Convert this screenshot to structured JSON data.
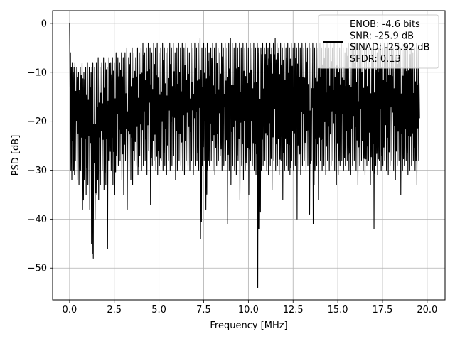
{
  "chart_data": {
    "type": "line",
    "title": "",
    "xlabel": "Frequency [MHz]",
    "ylabel": "PSD [dB]",
    "xlim": [
      -0.95,
      21.0
    ],
    "ylim": [
      -56.5,
      2.6
    ],
    "grid": true,
    "xticks": [
      0.0,
      2.5,
      5.0,
      7.5,
      10.0,
      12.5,
      15.0,
      17.5,
      20.0
    ],
    "xtick_labels": [
      "0.0",
      "2.5",
      "5.0",
      "7.5",
      "10.0",
      "12.5",
      "15.0",
      "17.5",
      "20.0"
    ],
    "yticks": [
      0,
      -10,
      -20,
      -30,
      -40,
      -50
    ],
    "ytick_labels": [
      "0",
      "−10",
      "−20",
      "−30",
      "−40",
      "−50"
    ],
    "legend": {
      "placement": "top-right",
      "entries": [
        "ENOB: -4.6 bits",
        "SNR: -25.9 dB",
        "SINAD: -25.92 dB",
        "SFDR: 0.13"
      ]
    },
    "series": [
      {
        "color": "#000000",
        "x": [
          0.0,
          0.05,
          0.1,
          0.15,
          0.2,
          0.25,
          0.3,
          0.4,
          0.5,
          0.6,
          0.7,
          0.8,
          0.9,
          1.0,
          1.1,
          1.2,
          1.25,
          1.3,
          1.4,
          1.5,
          1.6,
          1.7,
          1.8,
          1.9,
          2.0,
          2.1,
          2.2,
          2.3,
          2.4,
          2.5,
          2.6,
          2.7,
          2.8,
          2.9,
          3.0,
          3.1,
          3.2,
          3.3,
          3.4,
          3.5,
          3.6,
          3.7,
          3.8,
          3.9,
          4.0,
          4.1,
          4.2,
          4.3,
          4.4,
          4.5,
          4.6,
          4.7,
          4.8,
          4.9,
          5.0,
          5.1,
          5.2,
          5.3,
          5.4,
          5.5,
          5.6,
          5.7,
          5.8,
          5.9,
          6.0,
          6.1,
          6.2,
          6.3,
          6.4,
          6.5,
          6.6,
          6.7,
          6.8,
          6.9,
          7.0,
          7.1,
          7.2,
          7.3,
          7.4,
          7.5,
          7.6,
          7.7,
          7.8,
          7.9,
          8.0,
          8.1,
          8.2,
          8.3,
          8.4,
          8.5,
          8.6,
          8.7,
          8.8,
          8.9,
          9.0,
          9.1,
          9.2,
          9.3,
          9.4,
          9.5,
          9.6,
          9.7,
          9.8,
          9.9,
          10.0,
          10.1,
          10.2,
          10.3,
          10.4,
          10.5,
          10.55,
          10.6,
          10.7,
          10.8,
          10.9,
          11.0,
          11.1,
          11.2,
          11.3,
          11.4,
          11.5,
          11.6,
          11.7,
          11.8,
          11.9,
          12.0,
          12.1,
          12.2,
          12.3,
          12.4,
          12.5,
          12.6,
          12.7,
          12.8,
          12.9,
          13.0,
          13.1,
          13.2,
          13.3,
          13.4,
          13.5,
          13.6,
          13.7,
          13.8,
          13.9,
          14.0,
          14.1,
          14.2,
          14.3,
          14.4,
          14.5,
          14.6,
          14.7,
          14.8,
          14.9,
          15.0,
          15.1,
          15.2,
          15.3,
          15.4,
          15.5,
          15.6,
          15.7,
          15.8,
          15.9,
          16.0,
          16.1,
          16.2,
          16.3,
          16.4,
          16.5,
          16.6,
          16.7,
          16.8,
          16.9,
          17.0,
          17.1,
          17.2,
          17.3,
          17.4,
          17.5,
          17.6,
          17.7,
          17.8,
          17.9,
          18.0,
          18.1,
          18.2,
          18.3,
          18.4,
          18.5,
          18.6,
          18.7,
          18.8,
          18.9,
          19.0,
          19.1,
          19.2,
          19.3,
          19.4,
          19.5,
          19.6,
          19.7,
          19.8,
          19.9,
          20.0
        ],
        "max": [
          0.0,
          -6,
          -9,
          -8,
          -10,
          -9,
          -8,
          -9,
          -10,
          -9,
          -8,
          -10,
          -9,
          -8,
          -9,
          -10,
          -9,
          -8,
          -9,
          -8,
          -7,
          -9,
          -8,
          -7,
          -8,
          -9,
          -7,
          -8,
          -7,
          -8,
          -6,
          -7,
          -8,
          -6,
          -7,
          -6,
          -5,
          -7,
          -6,
          -5,
          -6,
          -7,
          -5,
          -6,
          -5,
          -4,
          -6,
          -5,
          -4,
          -5,
          -6,
          -4,
          -5,
          -4,
          -6,
          -5,
          -4,
          -5,
          -6,
          -5,
          -4,
          -5,
          -4,
          -6,
          -5,
          -4,
          -5,
          -4,
          -5,
          -4,
          -5,
          -6,
          -4,
          -5,
          -4,
          -5,
          -4,
          -3,
          -5,
          -4,
          -5,
          -4,
          -6,
          -5,
          -4,
          -5,
          -4,
          -5,
          -6,
          -4,
          -5,
          -4,
          -5,
          -4,
          -3,
          -4,
          -5,
          -4,
          -5,
          -4,
          -5,
          -4,
          -5,
          -4,
          -5,
          -4,
          -5,
          -4,
          -5,
          -4,
          -5,
          -6,
          -5,
          -4,
          -5,
          -4,
          -5,
          -4,
          -5,
          -4,
          -3,
          -4,
          -5,
          -4,
          -5,
          -4,
          -5,
          -4,
          -5,
          -4,
          -5,
          -4,
          -5,
          -4,
          -5,
          -4,
          -5,
          -4,
          -5,
          -4,
          -5,
          -4,
          -5,
          -4,
          -5,
          -4,
          -5,
          -4,
          -5,
          -4,
          -5,
          -4,
          -5,
          -4,
          -5,
          -4,
          -5,
          -4,
          -5,
          -6,
          -5,
          -4,
          -5,
          -4,
          -5,
          -4,
          -5,
          -4,
          -5,
          -4,
          -5,
          -4,
          -5,
          -4,
          -5,
          -4,
          -5,
          -6,
          -5,
          -4,
          -5,
          -4,
          -5,
          -4,
          -5,
          -4,
          -5,
          -4,
          -5,
          -4,
          -5,
          -4,
          -5,
          -4,
          -5,
          -4,
          -5,
          -6,
          -5,
          -4,
          -5
        ],
        "min": [
          -13,
          -30,
          -32,
          -24,
          -30,
          -31,
          -28,
          -32,
          -33,
          -30,
          -38,
          -32,
          -35,
          -33,
          -38,
          -45,
          -47,
          -48,
          -40,
          -35,
          -36,
          -33,
          -30,
          -34,
          -33,
          -46,
          -28,
          -30,
          -33,
          -35,
          -27,
          -29,
          -28,
          -32,
          -35,
          -28,
          -38,
          -30,
          -32,
          -33,
          -28,
          -29,
          -31,
          -27,
          -30,
          -29,
          -28,
          -31,
          -26,
          -37,
          -29,
          -28,
          -30,
          -31,
          -29,
          -28,
          -30,
          -29,
          -31,
          -28,
          -30,
          -29,
          -27,
          -32,
          -30,
          -28,
          -29,
          -30,
          -31,
          -28,
          -29,
          -30,
          -28,
          -31,
          -29,
          -28,
          -30,
          -44,
          -29,
          -28,
          -38,
          -30,
          -29,
          -28,
          -30,
          -31,
          -29,
          -28,
          -27,
          -30,
          -29,
          -28,
          -41,
          -30,
          -33,
          -29,
          -30,
          -31,
          -28,
          -36,
          -29,
          -32,
          -30,
          -29,
          -35,
          -28,
          -29,
          -30,
          -31,
          -54,
          -42,
          -42,
          -30,
          -29,
          -28,
          -30,
          -31,
          -29,
          -34,
          -28,
          -30,
          -29,
          -31,
          -28,
          -36,
          -30,
          -29,
          -30,
          -31,
          -28,
          -30,
          -29,
          -40,
          -30,
          -31,
          -29,
          -28,
          -30,
          -29,
          -39,
          -28,
          -41,
          -30,
          -29,
          -36,
          -28,
          -30,
          -29,
          -31,
          -28,
          -30,
          -29,
          -28,
          -30,
          -33,
          -31,
          -29,
          -28,
          -30,
          -29,
          -28,
          -30,
          -31,
          -29,
          -28,
          -30,
          -33,
          -29,
          -28,
          -30,
          -31,
          -29,
          -28,
          -33,
          -30,
          -42,
          -29,
          -31,
          -28,
          -30,
          -29,
          -28,
          -30,
          -31,
          -29,
          -28,
          -30,
          -32,
          -29,
          -28,
          -35,
          -30,
          -29,
          -28,
          -31,
          -30,
          -29,
          -28,
          -30,
          -33,
          -28
        ]
      }
    ]
  }
}
